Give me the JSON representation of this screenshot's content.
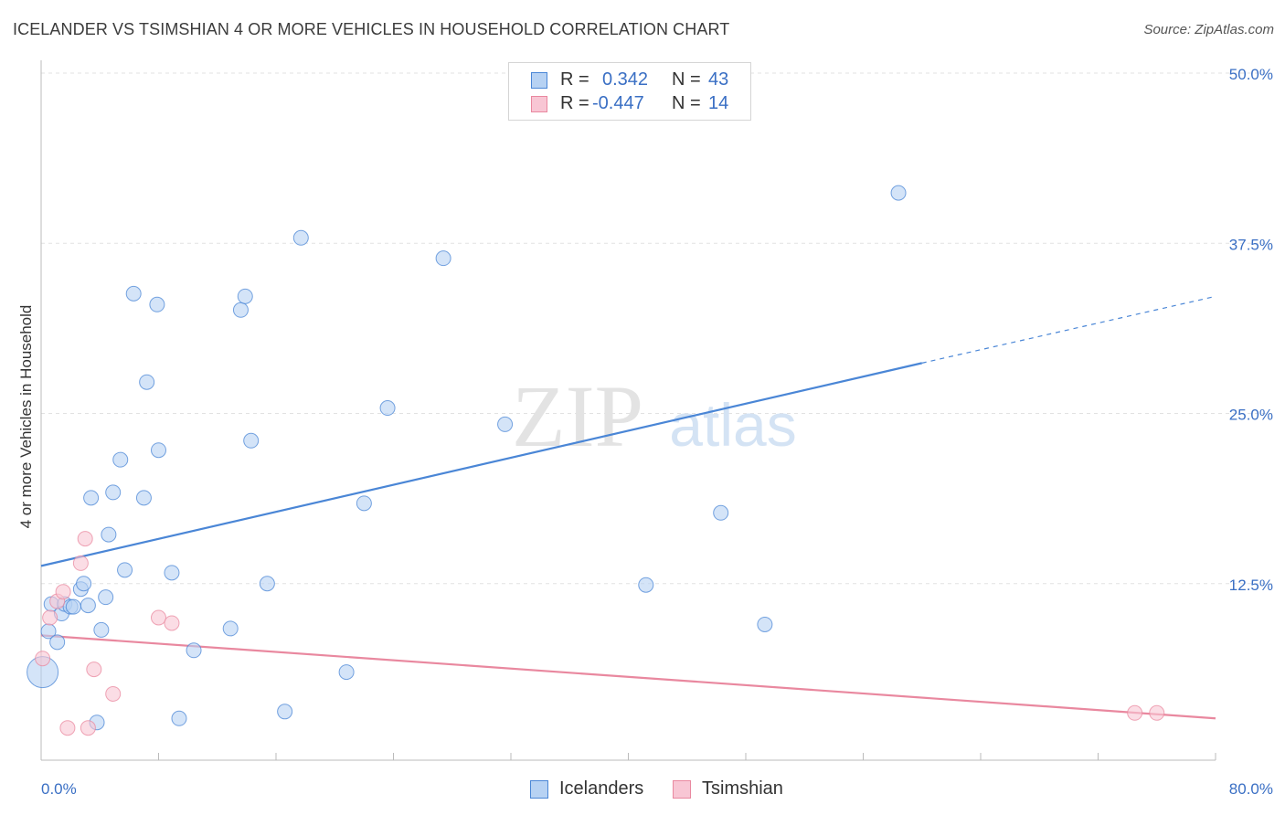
{
  "header": {
    "title": "ICELANDER VS TSIMSHIAN 4 OR MORE VEHICLES IN HOUSEHOLD CORRELATION CHART",
    "source": "Source: ZipAtlas.com"
  },
  "watermark": {
    "zip": "ZIP",
    "atlas": "atlas"
  },
  "legend": {
    "rows": [
      {
        "r_label": "R =",
        "r_value": "0.342",
        "n_label": "N =",
        "n_value": "43",
        "color": "#4a86d6",
        "fill": "#b7d2f3"
      },
      {
        "r_label": "R =",
        "r_value": "-0.447",
        "n_label": "N =",
        "n_value": "14",
        "color": "#e9889f",
        "fill": "#f8c6d4"
      }
    ]
  },
  "bottom_legend": {
    "items": [
      {
        "label": "Icelanders",
        "color": "#4a86d6",
        "fill": "#b7d2f3"
      },
      {
        "label": "Tsimshian",
        "color": "#e9889f",
        "fill": "#f8c6d4"
      }
    ]
  },
  "chart_data": {
    "type": "scatter",
    "title": "ICELANDER VS TSIMSHIAN 4 OR MORE VEHICLES IN HOUSEHOLD CORRELATION CHART",
    "xlabel": "",
    "ylabel": "4 or more Vehicles in Household",
    "xlim": [
      0,
      80
    ],
    "ylim": [
      0,
      50
    ],
    "x_tick_labels": [
      "0.0%",
      "80.0%"
    ],
    "y_tick_labels": [
      "12.5%",
      "25.0%",
      "37.5%",
      "50.0%"
    ],
    "y_ticks": [
      12.5,
      25.0,
      37.5,
      50.0
    ],
    "grid": true,
    "series": [
      {
        "name": "Icelanders",
        "color": "#4a86d6",
        "fill": "#b7d2f3",
        "points": [
          [
            0.1,
            6.0
          ],
          [
            0.5,
            9.0
          ],
          [
            0.7,
            11.0
          ],
          [
            1.1,
            8.2
          ],
          [
            1.4,
            10.3
          ],
          [
            1.6,
            11.0
          ],
          [
            2.0,
            10.8
          ],
          [
            2.2,
            10.8
          ],
          [
            2.7,
            12.1
          ],
          [
            2.9,
            12.5
          ],
          [
            3.2,
            10.9
          ],
          [
            3.4,
            18.8
          ],
          [
            3.8,
            2.3
          ],
          [
            4.1,
            9.1
          ],
          [
            4.4,
            11.5
          ],
          [
            4.6,
            16.1
          ],
          [
            4.9,
            19.2
          ],
          [
            5.4,
            21.6
          ],
          [
            5.7,
            13.5
          ],
          [
            6.3,
            33.8
          ],
          [
            7.0,
            18.8
          ],
          [
            7.2,
            27.3
          ],
          [
            7.9,
            33.0
          ],
          [
            8.0,
            22.3
          ],
          [
            8.9,
            13.3
          ],
          [
            9.4,
            2.6
          ],
          [
            10.4,
            7.6
          ],
          [
            12.9,
            9.2
          ],
          [
            13.6,
            32.6
          ],
          [
            13.9,
            33.6
          ],
          [
            14.3,
            23.0
          ],
          [
            15.4,
            12.5
          ],
          [
            16.6,
            3.1
          ],
          [
            17.7,
            37.9
          ],
          [
            20.8,
            6.0
          ],
          [
            22.0,
            18.4
          ],
          [
            23.6,
            25.4
          ],
          [
            27.4,
            36.4
          ],
          [
            31.6,
            24.2
          ],
          [
            41.2,
            12.4
          ],
          [
            46.3,
            17.7
          ],
          [
            49.3,
            9.5
          ],
          [
            58.4,
            41.2
          ]
        ],
        "trendline": {
          "x": [
            0,
            60
          ],
          "y": [
            13.8,
            28.7
          ],
          "dashed_extension": {
            "x": [
              60,
              80
            ],
            "y": [
              28.7,
              33.6
            ]
          }
        }
      },
      {
        "name": "Tsimshian",
        "color": "#e9889f",
        "fill": "#f8c6d4",
        "points": [
          [
            0.1,
            7.0
          ],
          [
            0.6,
            10.0
          ],
          [
            1.1,
            11.2
          ],
          [
            1.5,
            11.9
          ],
          [
            1.8,
            1.9
          ],
          [
            2.7,
            14.0
          ],
          [
            3.0,
            15.8
          ],
          [
            3.2,
            1.9
          ],
          [
            3.6,
            6.2
          ],
          [
            4.9,
            4.4
          ],
          [
            8.0,
            10.0
          ],
          [
            8.9,
            9.6
          ],
          [
            74.5,
            3.0
          ],
          [
            76.0,
            3.0
          ]
        ],
        "trendline": {
          "x": [
            0,
            80
          ],
          "y": [
            8.7,
            2.6
          ]
        }
      }
    ]
  }
}
